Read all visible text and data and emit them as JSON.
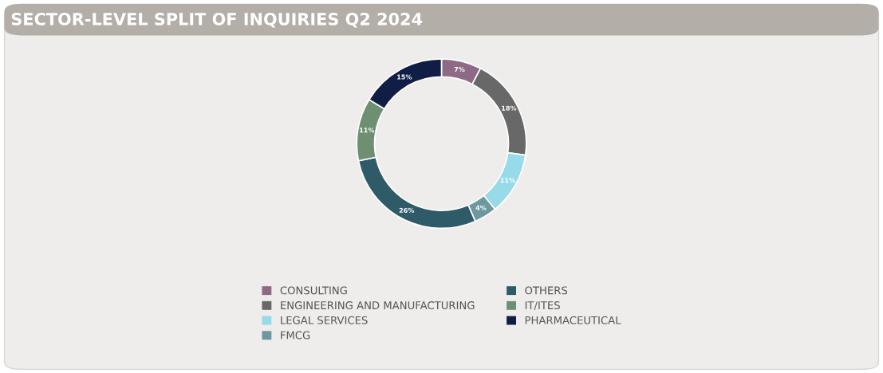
{
  "chart_data": {
    "type": "donut",
    "title": "SECTOR-LEVEL SPLIT OF INQUIRIES Q2 2024",
    "categories": [
      "CONSULTING",
      "ENGINEERING AND MANUFACTURING",
      "LEGAL SERVICES",
      "FMCG",
      "OTHERS",
      "IT/ITES",
      "PHARMACEUTICAL"
    ],
    "values": [
      7,
      18,
      11,
      4,
      26,
      11,
      15
    ],
    "colors": [
      "#8e6a85",
      "#696868",
      "#97dbea",
      "#6e97a0",
      "#2f5b68",
      "#6f8f72",
      "#101d45"
    ],
    "value_labels": [
      "7%",
      "18%",
      "11%",
      "4%",
      "26%",
      "11%",
      "15%"
    ],
    "legend": "bottom"
  }
}
